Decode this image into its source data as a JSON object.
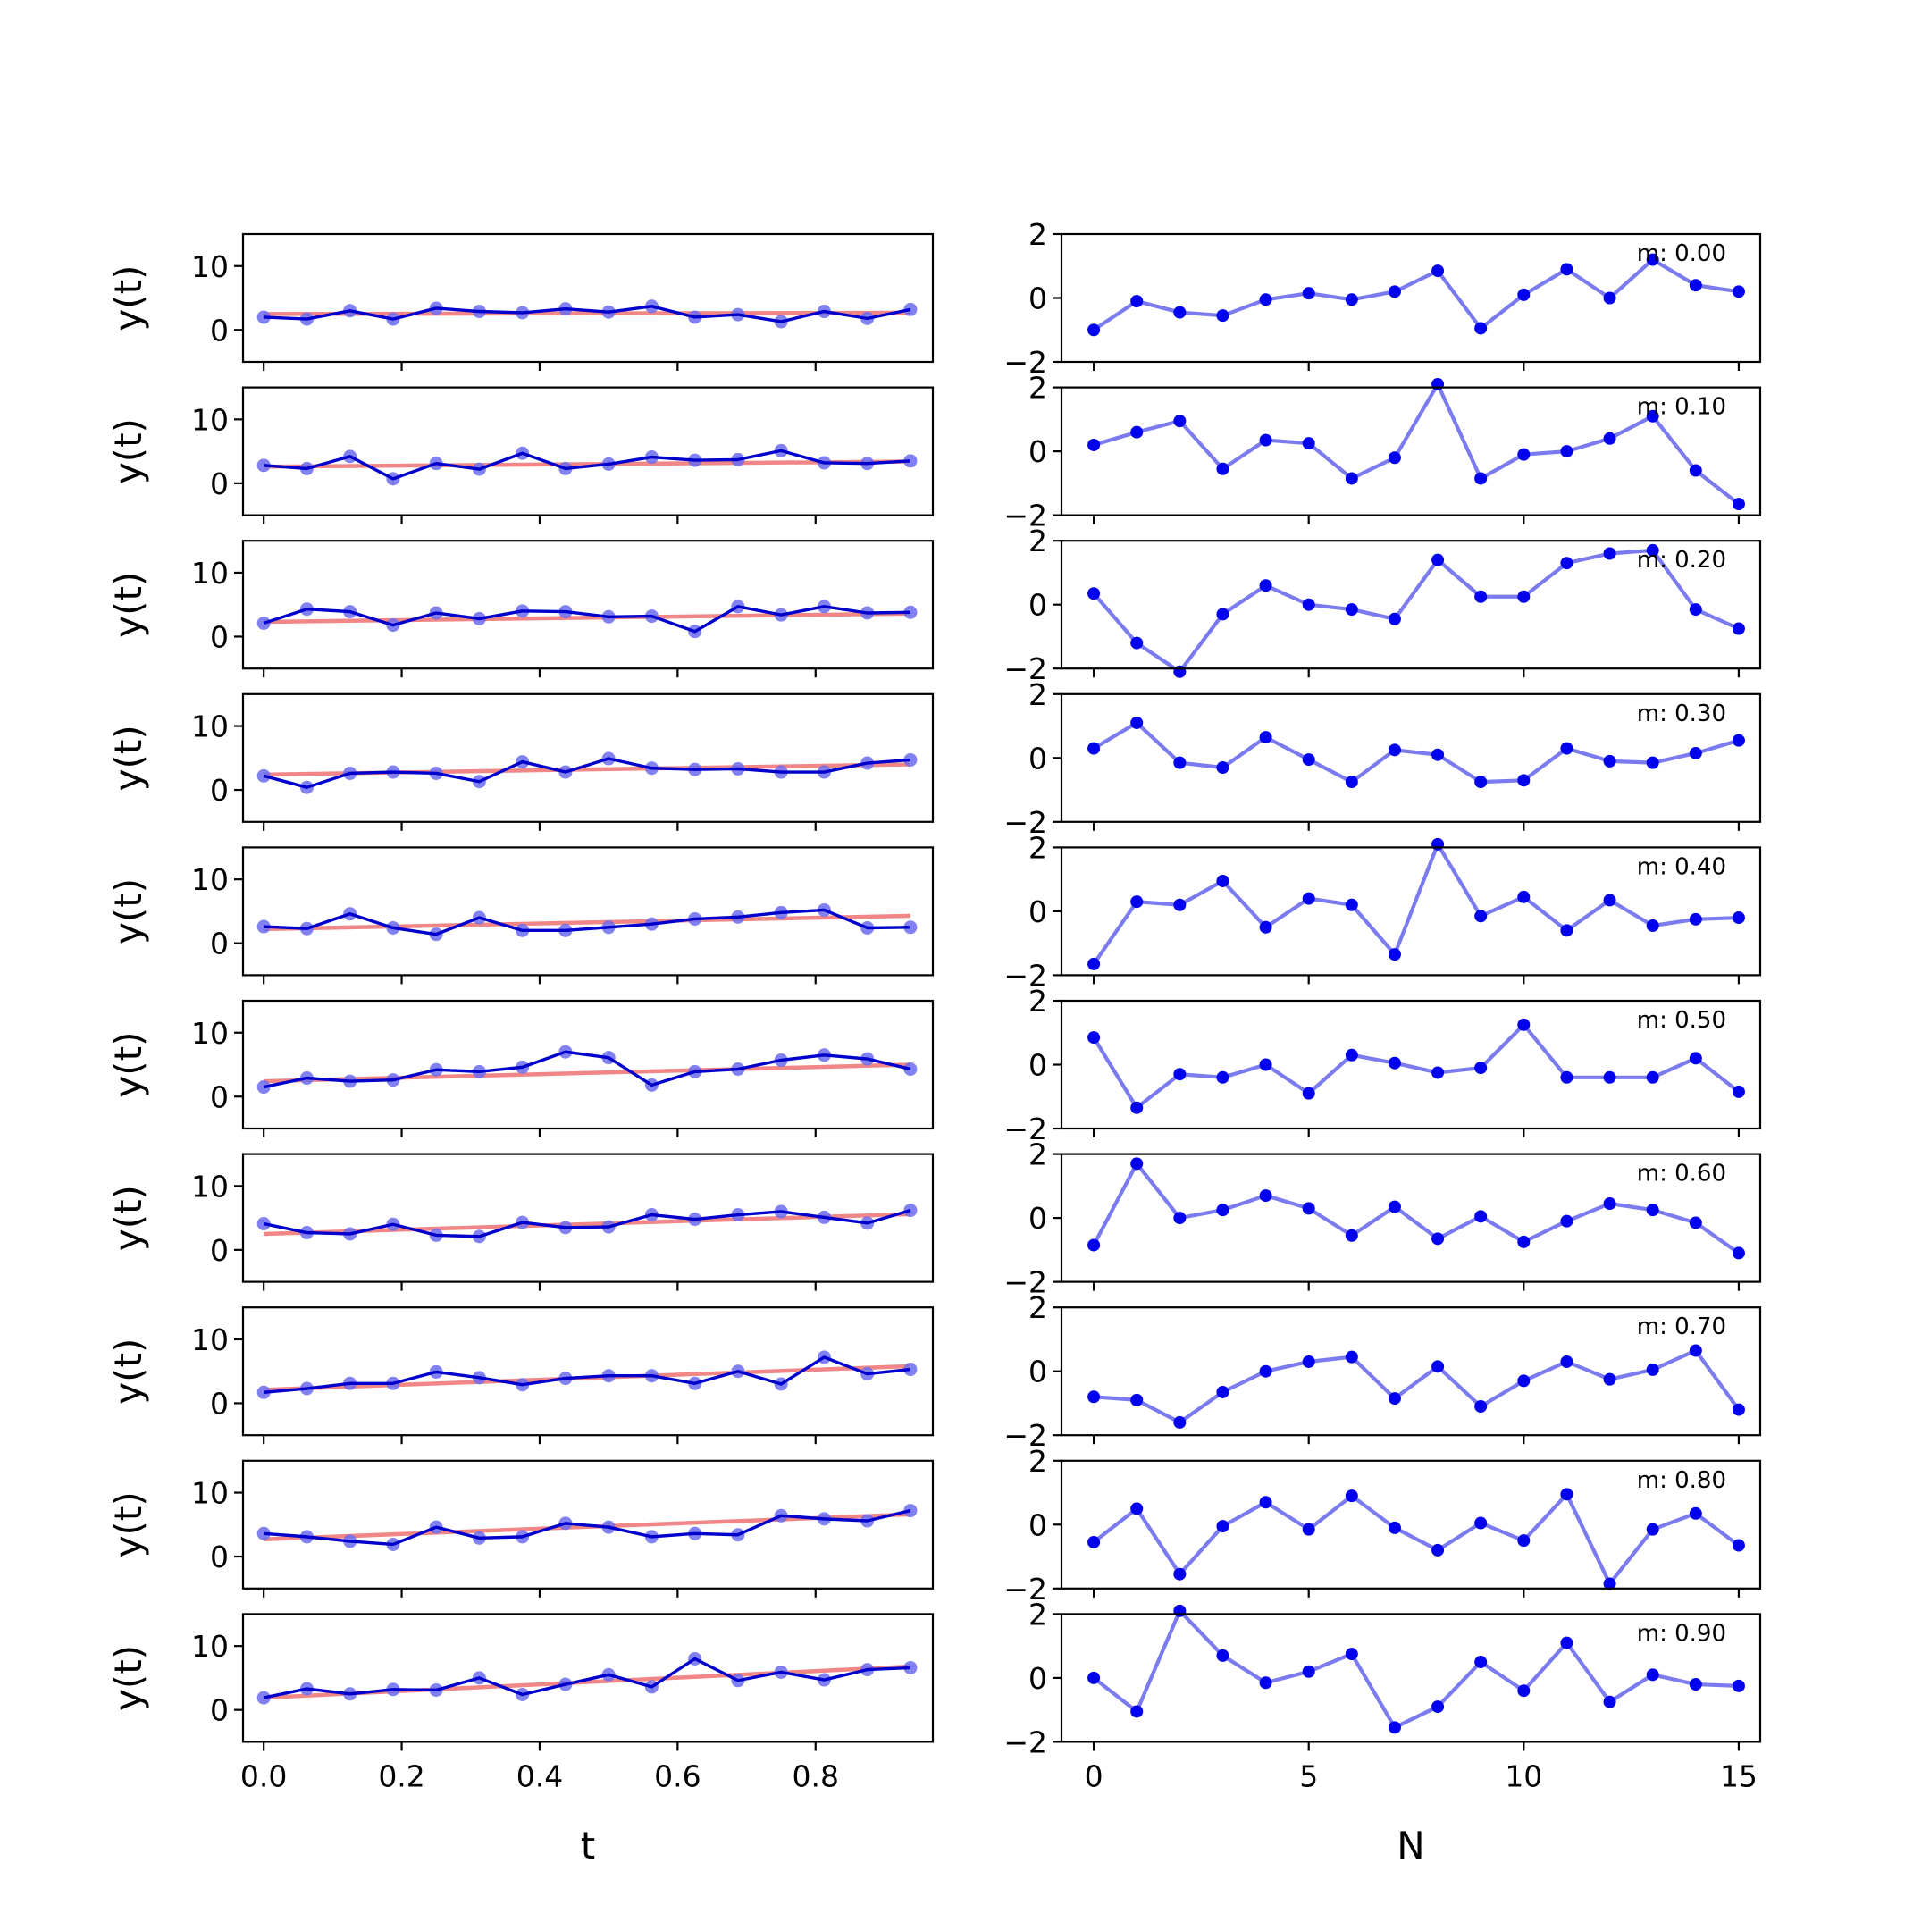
{
  "chart_data": {
    "type": "line",
    "layout": "10 rows x 2 columns",
    "left": {
      "xlabel": "t",
      "ylabel": "y(t)",
      "xlim": [
        -0.03,
        0.97
      ],
      "ylim": [
        -5,
        15
      ],
      "xticks": [
        0.0,
        0.2,
        0.4,
        0.6,
        0.8
      ],
      "xtick_labels": [
        "0.0",
        "0.2",
        "0.4",
        "0.6",
        "0.8"
      ],
      "yticks": [
        0,
        10
      ],
      "ytick_labels": [
        "0",
        "10"
      ],
      "x": [
        0,
        0.0625,
        0.125,
        0.1875,
        0.25,
        0.3125,
        0.375,
        0.4375,
        0.5,
        0.5625,
        0.625,
        0.6875,
        0.75,
        0.8125,
        0.875,
        0.9375
      ],
      "fit_color": "#f08080",
      "data_color": "#0000cc",
      "marker_color": "#6b6bef",
      "rows": [
        {
          "y": [
            2.0,
            1.7,
            3.0,
            1.7,
            3.4,
            2.9,
            2.7,
            3.3,
            2.8,
            3.7,
            2.0,
            2.4,
            1.3,
            2.9,
            1.8,
            3.2
          ],
          "fit": [
            2.5,
            2.7
          ]
        },
        {
          "y": [
            2.8,
            2.3,
            4.2,
            0.7,
            3.1,
            2.2,
            4.7,
            2.3,
            3.0,
            4.1,
            3.6,
            3.7,
            5.1,
            3.2,
            3.1,
            3.5
          ],
          "fit": [
            2.6,
            3.4
          ]
        },
        {
          "y": [
            2.1,
            4.3,
            3.9,
            1.8,
            3.7,
            2.8,
            4.0,
            3.9,
            3.1,
            3.2,
            0.8,
            4.7,
            3.4,
            4.7,
            3.7,
            3.8
          ],
          "fit": [
            2.3,
            3.6
          ]
        },
        {
          "y": [
            2.2,
            0.4,
            2.6,
            2.8,
            2.6,
            1.3,
            4.4,
            2.8,
            4.9,
            3.4,
            3.2,
            3.3,
            2.8,
            2.8,
            4.2,
            4.7
          ],
          "fit": [
            2.4,
            4.0
          ]
        },
        {
          "y": [
            2.6,
            2.3,
            4.6,
            2.4,
            1.4,
            4.0,
            2.0,
            2.0,
            2.5,
            3.0,
            3.8,
            4.1,
            4.8,
            5.2,
            2.4,
            2.5
          ],
          "fit": [
            2.2,
            4.3
          ]
        },
        {
          "y": [
            1.5,
            2.9,
            2.4,
            2.6,
            4.2,
            3.9,
            4.6,
            7.0,
            6.1,
            1.8,
            3.9,
            4.3,
            5.7,
            6.5,
            5.9,
            4.3
          ],
          "fit": [
            2.4,
            5.0
          ]
        },
        {
          "y": [
            4.1,
            2.7,
            2.5,
            4.0,
            2.3,
            2.1,
            4.3,
            3.5,
            3.6,
            5.5,
            4.8,
            5.5,
            6.0,
            5.1,
            4.2,
            6.2
          ],
          "fit": [
            2.5,
            5.6
          ]
        },
        {
          "y": [
            1.7,
            2.3,
            3.1,
            3.1,
            4.9,
            4.0,
            2.9,
            3.9,
            4.3,
            4.3,
            3.1,
            5.0,
            3.0,
            7.2,
            4.6,
            5.3
          ],
          "fit": [
            2.1,
            5.8
          ]
        },
        {
          "y": [
            3.6,
            3.1,
            2.4,
            1.9,
            4.6,
            2.9,
            3.1,
            5.2,
            4.6,
            3.1,
            3.6,
            3.4,
            6.4,
            5.9,
            5.6,
            7.2
          ],
          "fit": [
            2.7,
            6.6
          ]
        },
        {
          "y": [
            1.9,
            3.3,
            2.5,
            3.2,
            3.1,
            5.0,
            2.4,
            4.0,
            5.5,
            3.6,
            8.0,
            4.6,
            5.9,
            4.7,
            6.3,
            6.6
          ],
          "fit": [
            1.9,
            6.8
          ]
        }
      ]
    },
    "right": {
      "xlabel": "N",
      "xlim": [
        -0.75,
        15.5
      ],
      "ylim": [
        -2,
        2
      ],
      "xticks": [
        0,
        5,
        10,
        15
      ],
      "xtick_labels": [
        "0",
        "5",
        "10",
        "15"
      ],
      "yticks": [
        -2,
        0,
        2
      ],
      "ytick_labels": [
        "−2",
        "0",
        "2"
      ],
      "x": [
        0,
        1,
        2,
        3,
        4,
        5,
        6,
        7,
        8,
        9,
        10,
        11,
        12,
        13,
        14,
        15
      ],
      "line_color": "#7b7bef",
      "marker_color": "#0000ee",
      "rows": [
        {
          "annotation": "m: 0.00",
          "y": [
            -1.0,
            -0.1,
            -0.45,
            -0.55,
            -0.05,
            0.15,
            -0.05,
            0.2,
            0.85,
            -0.95,
            0.1,
            0.9,
            0.0,
            1.2,
            0.4,
            0.2
          ]
        },
        {
          "annotation": "m: 0.10",
          "y": [
            0.2,
            0.6,
            0.95,
            -0.55,
            0.35,
            0.25,
            -0.85,
            -0.2,
            2.1,
            -0.85,
            -0.1,
            0.0,
            0.4,
            1.1,
            -0.6,
            -1.65
          ]
        },
        {
          "annotation": "m: 0.20",
          "y": [
            0.35,
            -1.2,
            -2.1,
            -0.3,
            0.6,
            0.0,
            -0.15,
            -0.45,
            1.4,
            0.25,
            0.25,
            1.3,
            1.6,
            1.7,
            -0.15,
            -0.75
          ]
        },
        {
          "annotation": "m: 0.30",
          "y": [
            0.3,
            1.1,
            -0.15,
            -0.3,
            0.65,
            -0.05,
            -0.75,
            0.25,
            0.1,
            -0.75,
            -0.7,
            0.3,
            -0.1,
            -0.15,
            0.15,
            0.55
          ]
        },
        {
          "annotation": "m: 0.40",
          "y": [
            -1.65,
            0.3,
            0.2,
            0.95,
            -0.5,
            0.4,
            0.2,
            -1.35,
            2.1,
            -0.15,
            0.45,
            -0.6,
            0.35,
            -0.45,
            -0.25,
            -0.2
          ]
        },
        {
          "annotation": "m: 0.50",
          "y": [
            0.85,
            -1.35,
            -0.3,
            -0.4,
            0.0,
            -0.9,
            0.3,
            0.05,
            -0.25,
            -0.1,
            1.25,
            -0.4,
            -0.4,
            -0.4,
            0.2,
            -0.85
          ]
        },
        {
          "annotation": "m: 0.60",
          "y": [
            -0.85,
            1.7,
            0.0,
            0.25,
            0.7,
            0.3,
            -0.55,
            0.35,
            -0.65,
            0.05,
            -0.75,
            -0.1,
            0.45,
            0.25,
            -0.15,
            -1.1
          ]
        },
        {
          "annotation": "m: 0.70",
          "y": [
            -0.8,
            -0.9,
            -1.6,
            -0.65,
            0.0,
            0.3,
            0.45,
            -0.85,
            0.15,
            -1.1,
            -0.3,
            0.3,
            -0.25,
            0.05,
            0.65,
            -1.2
          ]
        },
        {
          "annotation": "m: 0.80",
          "y": [
            -0.55,
            0.5,
            -1.55,
            -0.05,
            0.7,
            -0.15,
            0.9,
            -0.1,
            -0.8,
            0.05,
            -0.5,
            0.95,
            -1.85,
            -0.15,
            0.35,
            -0.65
          ]
        },
        {
          "annotation": "m: 0.90",
          "y": [
            0.0,
            -1.05,
            2.1,
            0.7,
            -0.15,
            0.2,
            0.75,
            -1.55,
            -0.9,
            0.5,
            -0.4,
            1.1,
            -0.75,
            0.1,
            -0.2,
            -0.25
          ]
        }
      ]
    }
  }
}
